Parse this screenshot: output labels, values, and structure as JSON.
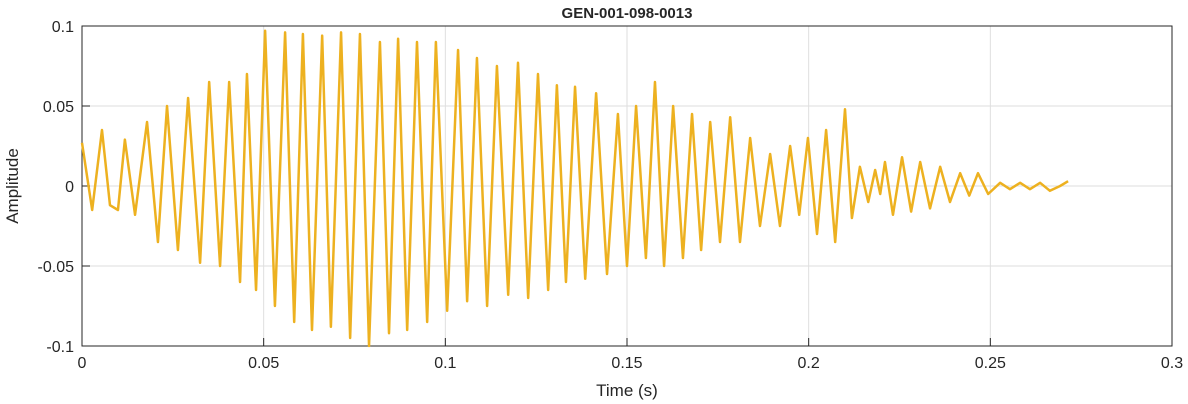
{
  "chart_data": {
    "type": "line",
    "title": "GEN-001-098-0013",
    "xlabel": "Time (s)",
    "ylabel": "Amplitude",
    "xlim": [
      0,
      0.3
    ],
    "xticks": [
      0,
      0.05,
      0.1,
      0.15,
      0.2,
      0.25,
      0.3
    ],
    "ylim": [
      -0.1,
      0.1
    ],
    "yticks": [
      -0.1,
      -0.05,
      0,
      0.05,
      0.1
    ],
    "grid": true,
    "x": [
      0,
      0.0028,
      0.0055,
      0.0077,
      0.0099,
      0.0118,
      0.0146,
      0.0179,
      0.0209,
      0.0234,
      0.0264,
      0.0292,
      0.0325,
      0.035,
      0.038,
      0.0405,
      0.0435,
      0.0454,
      0.0479,
      0.0504,
      0.0531,
      0.0559,
      0.0584,
      0.0608,
      0.0633,
      0.0661,
      0.0685,
      0.0713,
      0.0738,
      0.0765,
      0.079,
      0.082,
      0.0845,
      0.087,
      0.0895,
      0.0922,
      0.095,
      0.0974,
      0.1005,
      0.1035,
      0.106,
      0.1087,
      0.1115,
      0.1142,
      0.1173,
      0.12,
      0.1228,
      0.1255,
      0.1283,
      0.1307,
      0.1332,
      0.1357,
      0.1385,
      0.1415,
      0.1445,
      0.1475,
      0.15,
      0.1525,
      0.1552,
      0.1577,
      0.1602,
      0.1627,
      0.1654,
      0.1679,
      0.1704,
      0.1729,
      0.1756,
      0.1784,
      0.1811,
      0.1839,
      0.1866,
      0.1894,
      0.1921,
      0.1949,
      0.1974,
      0.1998,
      0.2023,
      0.2048,
      0.2073,
      0.21,
      0.2119,
      0.2141,
      0.2164,
      0.2183,
      0.2197,
      0.221,
      0.2232,
      0.2257,
      0.2282,
      0.2307,
      0.2334,
      0.2362,
      0.2389,
      0.2417,
      0.2442,
      0.2466,
      0.2494,
      0.2527,
      0.2554,
      0.2582,
      0.2609,
      0.2637,
      0.2664,
      0.2692,
      0.2714
    ],
    "series": [
      {
        "color": "#EDB120",
        "values": [
          0.027,
          -0.015,
          0.035,
          -0.012,
          -0.015,
          0.029,
          -0.018,
          0.04,
          -0.035,
          0.05,
          -0.04,
          0.055,
          -0.048,
          0.065,
          -0.05,
          0.065,
          -0.06,
          0.07,
          -0.065,
          0.097,
          -0.075,
          0.096,
          -0.085,
          0.095,
          -0.09,
          0.094,
          -0.088,
          0.096,
          -0.095,
          0.095,
          -0.1,
          0.09,
          -0.092,
          0.092,
          -0.09,
          0.09,
          -0.085,
          0.09,
          -0.078,
          0.085,
          -0.072,
          0.08,
          -0.075,
          0.075,
          -0.068,
          0.077,
          -0.07,
          0.07,
          -0.065,
          0.063,
          -0.06,
          0.062,
          -0.058,
          0.058,
          -0.055,
          0.045,
          -0.05,
          0.05,
          -0.045,
          0.065,
          -0.05,
          0.05,
          -0.045,
          0.045,
          -0.04,
          0.04,
          -0.035,
          0.043,
          -0.035,
          0.03,
          -0.025,
          0.02,
          -0.025,
          0.025,
          -0.018,
          0.03,
          -0.03,
          0.035,
          -0.035,
          0.048,
          -0.02,
          0.012,
          -0.01,
          0.01,
          -0.005,
          0.015,
          -0.018,
          0.018,
          -0.016,
          0.015,
          -0.014,
          0.012,
          -0.01,
          0.008,
          -0.006,
          0.008,
          -0.005,
          0.002,
          -0.002,
          0.002,
          -0.002,
          0.002,
          -0.003,
          0,
          0.003
        ]
      }
    ]
  }
}
